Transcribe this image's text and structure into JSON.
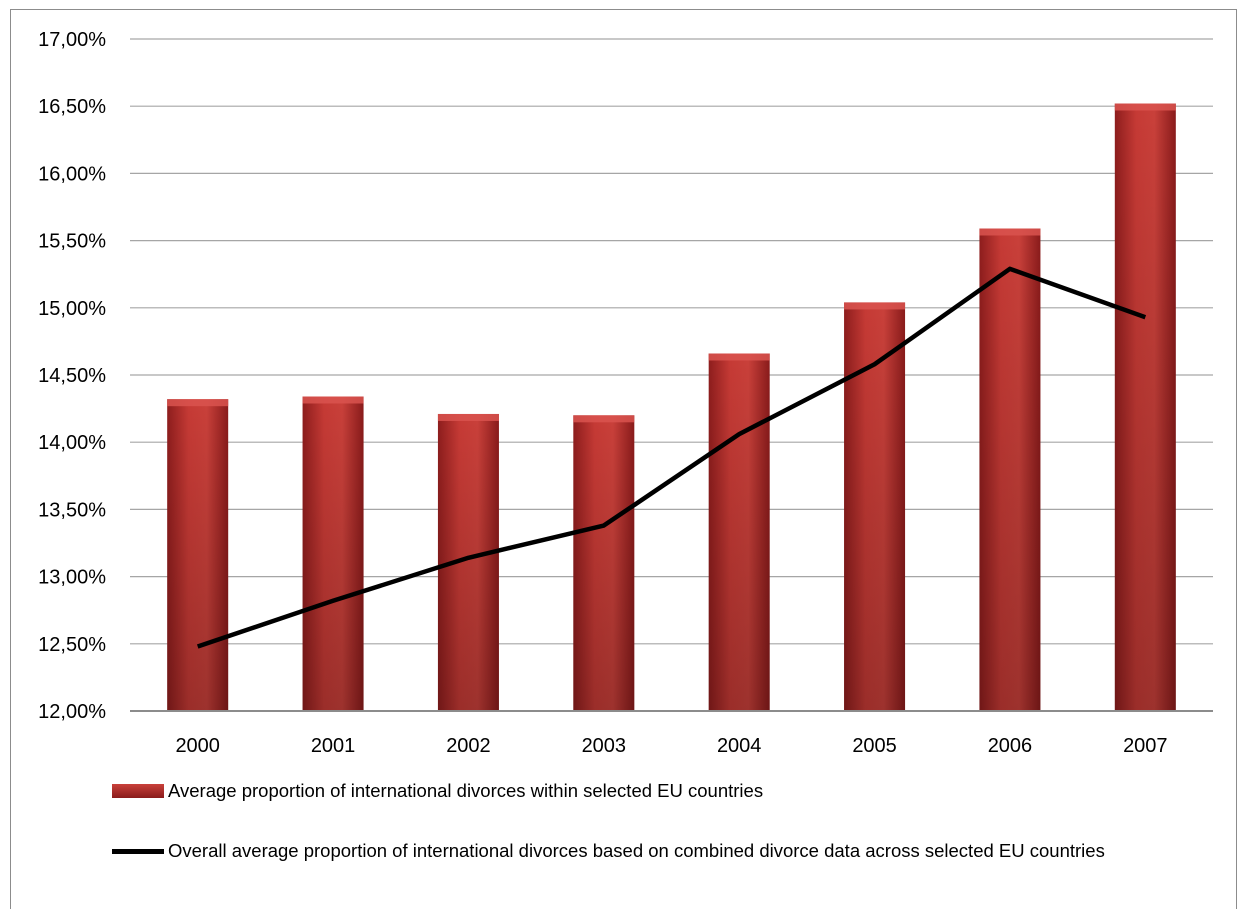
{
  "chart_data": {
    "type": "bar",
    "categories": [
      "2000",
      "2001",
      "2002",
      "2003",
      "2004",
      "2005",
      "2006",
      "2007"
    ],
    "series": [
      {
        "name": "Average proportion of international divorces within selected EU countries",
        "type": "bar",
        "color": "#c0392b",
        "values": [
          14.32,
          14.34,
          14.21,
          14.2,
          14.66,
          15.04,
          15.59,
          16.52
        ]
      },
      {
        "name": "Overall average proportion of international divorces based on combined divorce data across selected EU countries",
        "type": "line",
        "color": "#000000",
        "values": [
          12.48,
          12.82,
          13.14,
          13.38,
          14.06,
          14.58,
          15.29,
          14.93
        ]
      }
    ],
    "y_ticks": [
      "12,00%",
      "12,50%",
      "13,00%",
      "13,50%",
      "14,00%",
      "14,50%",
      "15,00%",
      "15,50%",
      "16,00%",
      "16,50%",
      "17,00%"
    ],
    "ylim": [
      12,
      17
    ],
    "grid": true,
    "legend_position": "bottom"
  }
}
